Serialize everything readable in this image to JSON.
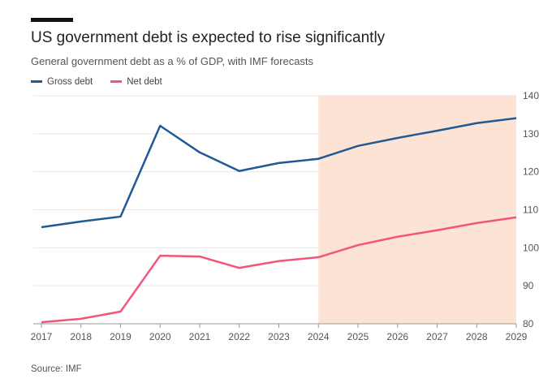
{
  "chart_data": {
    "type": "line",
    "title": "US government debt is expected to rise significantly",
    "subtitle": "General government debt as a % of GDP, with IMF forecasts",
    "x": [
      2017,
      2018,
      2019,
      2020,
      2021,
      2022,
      2023,
      2024,
      2025,
      2026,
      2027,
      2028,
      2029
    ],
    "series": [
      {
        "name": "Gross debt",
        "color": "#1f5a96",
        "values": [
          105.4,
          106.9,
          108.2,
          132.1,
          125.1,
          120.2,
          122.3,
          123.4,
          126.8,
          128.9,
          130.8,
          132.8,
          134.1
        ]
      },
      {
        "name": "Net debt",
        "color": "#f2557a",
        "values": [
          80.4,
          81.3,
          83.2,
          97.9,
          97.7,
          94.7,
          96.5,
          97.5,
          100.7,
          102.9,
          104.6,
          106.5,
          108.0
        ]
      }
    ],
    "ylim": [
      80,
      140
    ],
    "yticks": [
      80,
      90,
      100,
      110,
      120,
      130,
      140
    ],
    "forecast_shading": {
      "from": 2024,
      "to": 2029,
      "color": "#fde3d3"
    },
    "y_axis_side": "right",
    "legend_position": "top-left",
    "source": "Source: IMF"
  }
}
